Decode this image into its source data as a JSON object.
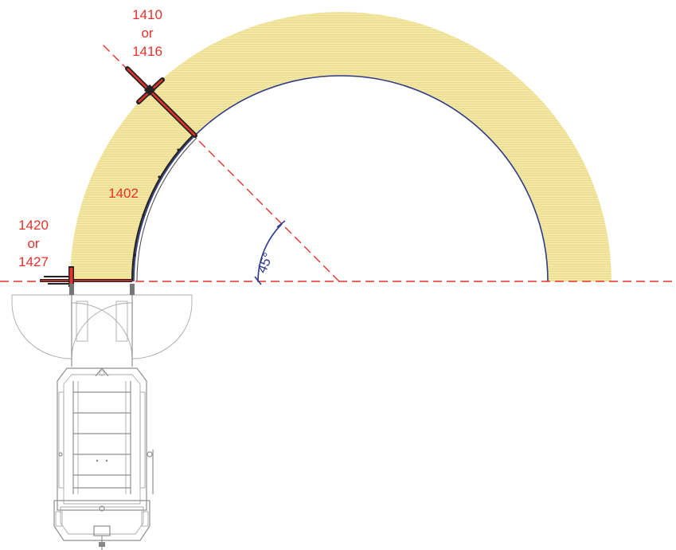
{
  "labels": {
    "top_arm": [
      "1410",
      "or",
      "1416"
    ],
    "arc": "1402",
    "left_arm": [
      "1420",
      "or",
      "1427"
    ],
    "angle": "45°"
  },
  "colors": {
    "swept_area": "#f3e6a2",
    "swept_area_stripe": "#eadb8a",
    "labels": "#e8312a",
    "dashed_lines": "#e8312a",
    "arc_outline": "#2e3a8c",
    "angle_marker": "#2e3a8c",
    "vehicle_outline": "#8f8f8f"
  }
}
